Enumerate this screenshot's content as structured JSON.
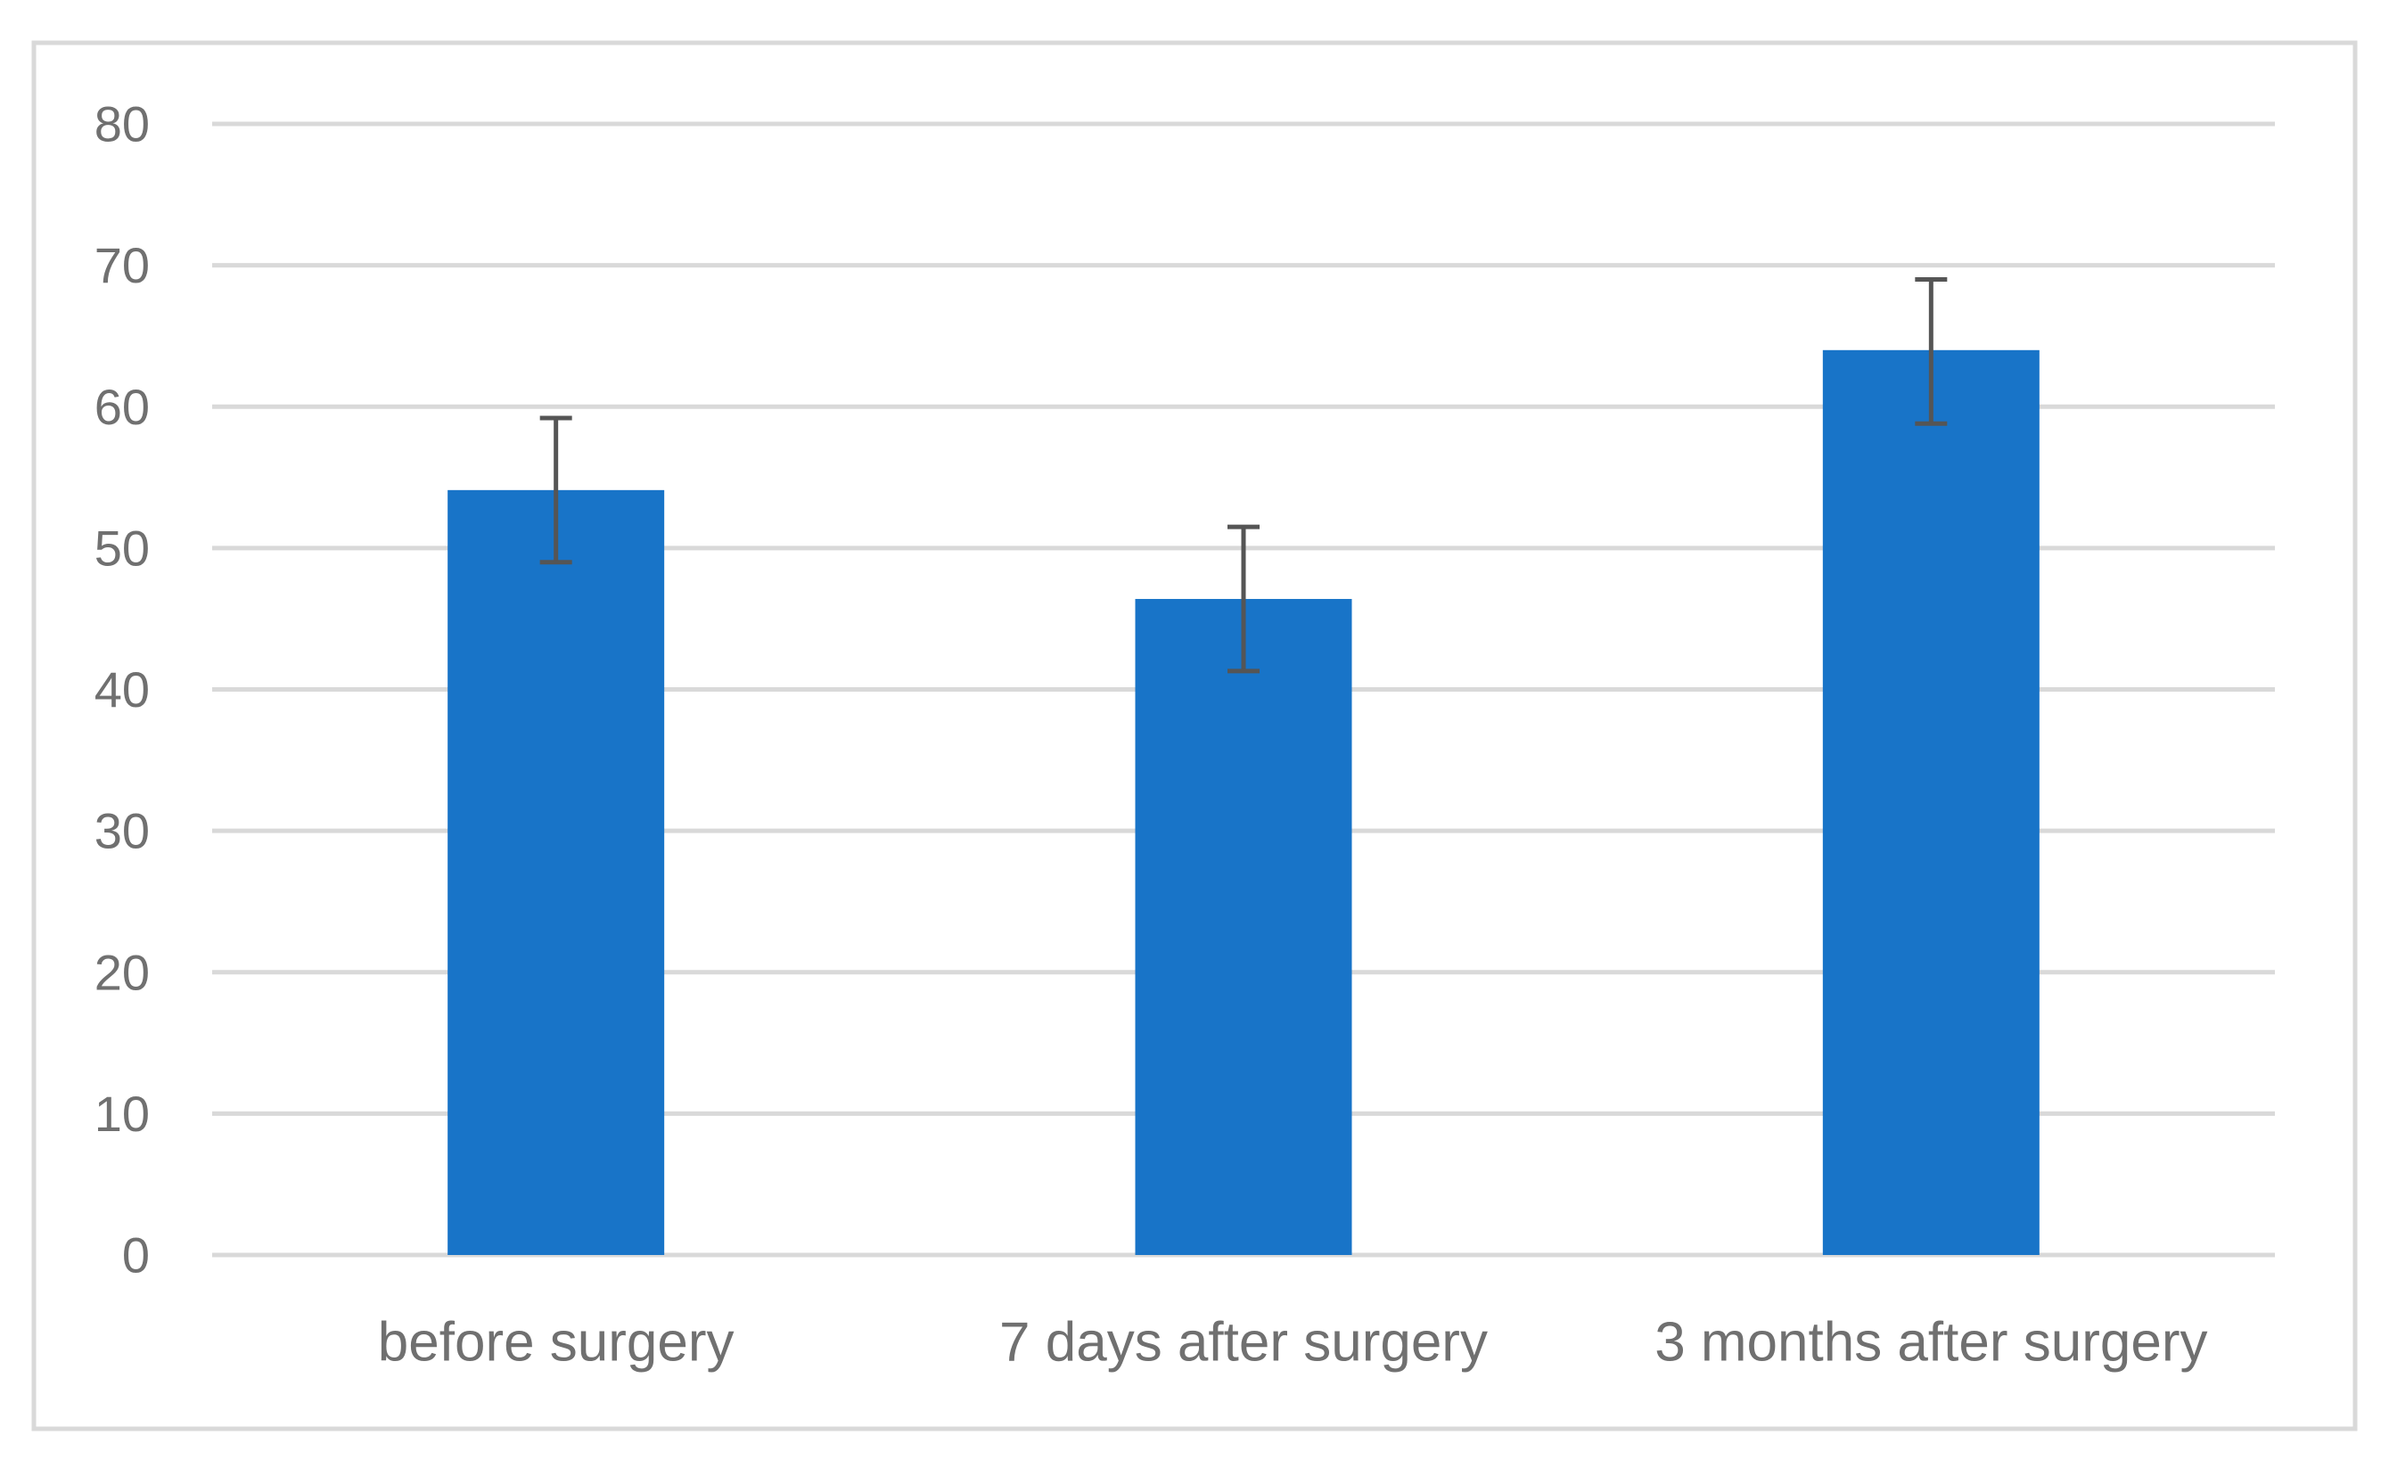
{
  "chart_data": {
    "type": "bar",
    "title": "",
    "xlabel": "",
    "ylabel": "",
    "categories": [
      "before surgery",
      "7 days after surgery",
      "3 months after surgery"
    ],
    "values": [
      54.1,
      46.4,
      64.0
    ],
    "error_plus": [
      5.1,
      5.1,
      5.0
    ],
    "error_minus": [
      5.1,
      5.1,
      5.2
    ],
    "ylim": [
      0,
      80
    ],
    "yticks": [
      "0",
      "10",
      "20",
      "30",
      "40",
      "50",
      "60",
      "70",
      "80"
    ],
    "grid": true,
    "legend": "none",
    "bar_color": "#1874C8",
    "error_bar_color": "#555555",
    "grid_color": "#d9d9d9",
    "tick_label_color": "#707070",
    "frame_color": "#d9d9d9"
  }
}
